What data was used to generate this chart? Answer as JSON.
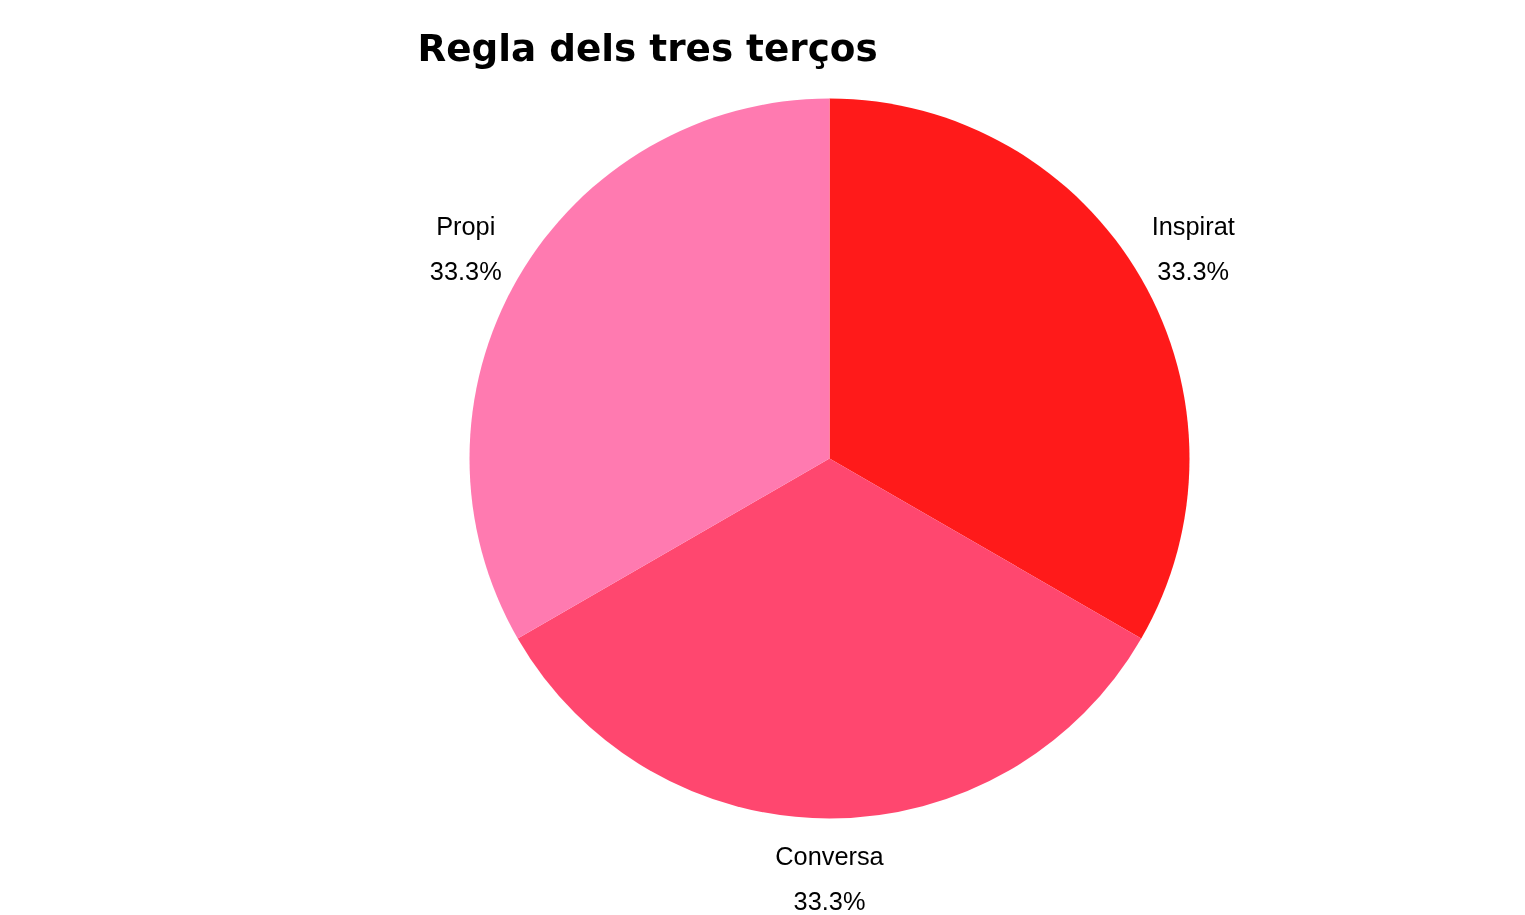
{
  "chart_data": {
    "type": "pie",
    "title": "Regla dels tres terços",
    "categories": [
      "Inspirat",
      "Conversa",
      "Propi"
    ],
    "values": [
      33.3,
      33.3,
      33.3
    ],
    "colors": [
      "#ff1a1a",
      "#ff476f",
      "#ff7ab0"
    ],
    "value_labels": [
      "33.3%",
      "33.3%",
      "33.3%"
    ]
  }
}
